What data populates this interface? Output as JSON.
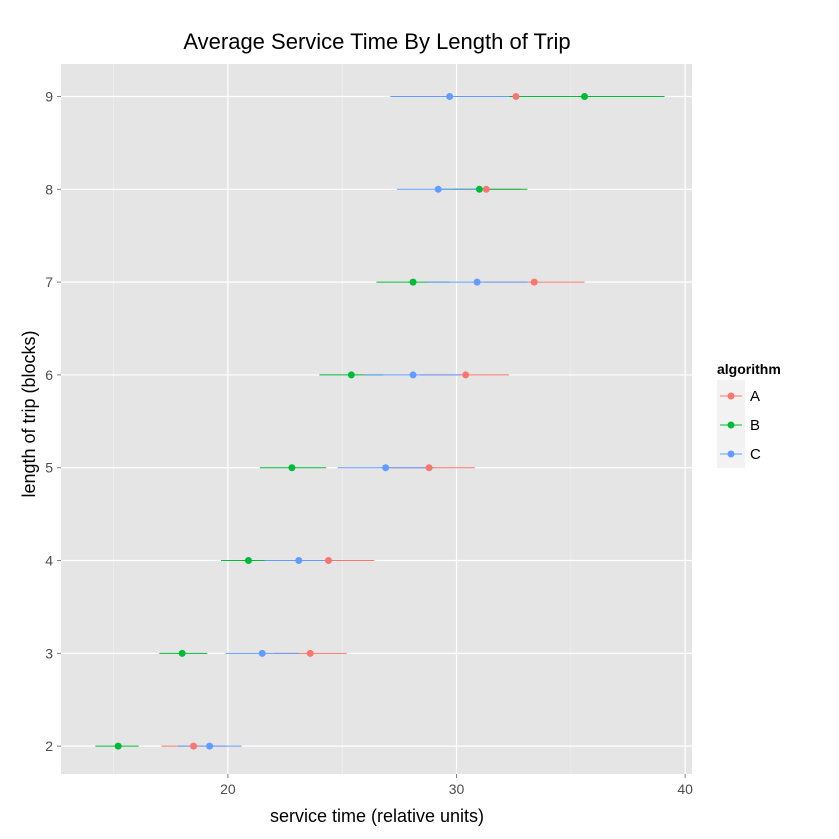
{
  "chart_data": {
    "type": "scatter",
    "title": "Average Service Time By Length of Trip",
    "xlabel": "service time (relative units)",
    "ylabel": "length of trip (blocks)",
    "xlim": [
      12.7,
      40.3
    ],
    "ylim": [
      1.7,
      9.35
    ],
    "x_ticks": [
      20,
      30,
      40
    ],
    "y_ticks": [
      2,
      3,
      4,
      5,
      6,
      7,
      8,
      9
    ],
    "grid": true,
    "legend": {
      "title": "algorithm",
      "placement": "right",
      "entries": [
        "A",
        "B",
        "C"
      ]
    },
    "series": [
      {
        "name": "A",
        "color": "#F8766D",
        "points": [
          {
            "y": 2,
            "x": 18.5,
            "lo": 17.1,
            "hi": 19.9
          },
          {
            "y": 3,
            "x": 23.6,
            "lo": 22.0,
            "hi": 25.2
          },
          {
            "y": 4,
            "x": 24.4,
            "lo": 22.4,
            "hi": 26.4
          },
          {
            "y": 5,
            "x": 28.8,
            "lo": 26.8,
            "hi": 30.8
          },
          {
            "y": 6,
            "x": 30.4,
            "lo": 28.4,
            "hi": 32.3
          },
          {
            "y": 7,
            "x": 33.4,
            "lo": 31.2,
            "hi": 35.6
          },
          {
            "y": 8,
            "x": 31.3,
            "lo": 29.9,
            "hi": 32.8
          },
          {
            "y": 9,
            "x": 32.6,
            "lo": 30.0,
            "hi": 35.2
          }
        ]
      },
      {
        "name": "B",
        "color": "#00BA38",
        "points": [
          {
            "y": 2,
            "x": 15.2,
            "lo": 14.2,
            "hi": 16.1
          },
          {
            "y": 3,
            "x": 18.0,
            "lo": 17.0,
            "hi": 19.1
          },
          {
            "y": 4,
            "x": 20.9,
            "lo": 19.7,
            "hi": 22.1
          },
          {
            "y": 5,
            "x": 22.8,
            "lo": 21.4,
            "hi": 24.3
          },
          {
            "y": 6,
            "x": 25.4,
            "lo": 24.0,
            "hi": 26.8
          },
          {
            "y": 7,
            "x": 28.1,
            "lo": 26.5,
            "hi": 29.7
          },
          {
            "y": 8,
            "x": 31.0,
            "lo": 29.2,
            "hi": 33.1
          },
          {
            "y": 9,
            "x": 35.6,
            "lo": 32.2,
            "hi": 39.1
          }
        ]
      },
      {
        "name": "C",
        "color": "#619CFF",
        "points": [
          {
            "y": 2,
            "x": 19.2,
            "lo": 17.8,
            "hi": 20.6
          },
          {
            "y": 3,
            "x": 21.5,
            "lo": 19.9,
            "hi": 23.1
          },
          {
            "y": 4,
            "x": 23.1,
            "lo": 21.6,
            "hi": 24.6
          },
          {
            "y": 5,
            "x": 26.9,
            "lo": 24.8,
            "hi": 29.0
          },
          {
            "y": 6,
            "x": 28.1,
            "lo": 26.0,
            "hi": 30.2
          },
          {
            "y": 7,
            "x": 30.9,
            "lo": 28.7,
            "hi": 33.1
          },
          {
            "y": 8,
            "x": 29.2,
            "lo": 27.4,
            "hi": 31.0
          },
          {
            "y": 9,
            "x": 29.7,
            "lo": 27.1,
            "hi": 32.3
          }
        ]
      }
    ]
  }
}
